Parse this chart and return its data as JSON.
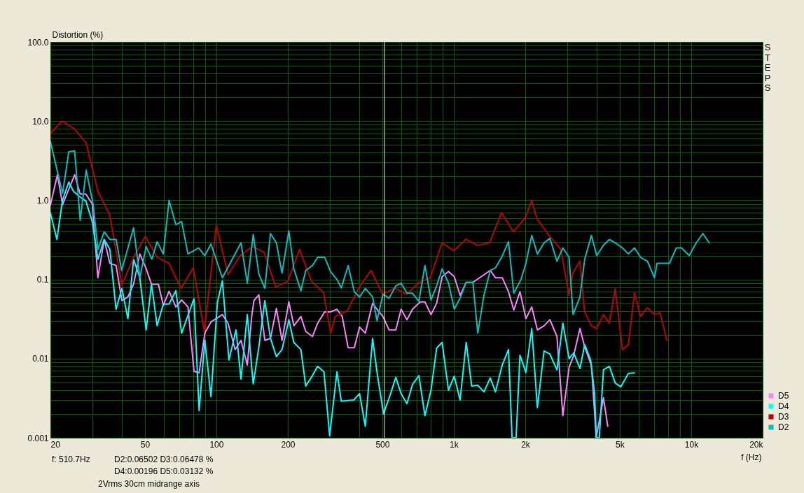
{
  "chart_data": {
    "type": "line",
    "xlabel": "f (Hz)",
    "ylabel": "Distortion (%)",
    "log": "xy",
    "grid": true,
    "legend": "bottom right",
    "xlim": [
      20,
      20000
    ],
    "ylim": [
      0.001,
      100
    ],
    "xticks": [
      20,
      {
        "value": 30,
        "label": null
      },
      {
        "value": 40,
        "label": null
      },
      50,
      {
        "value": 60,
        "label": null
      },
      {
        "value": 70,
        "label": null
      },
      {
        "value": 80,
        "label": null
      },
      {
        "value": 90,
        "label": null
      },
      100,
      200,
      {
        "value": 300,
        "label": null
      },
      {
        "value": 400,
        "label": null
      },
      500,
      {
        "value": 600,
        "label": null
      },
      {
        "value": 700,
        "label": null
      },
      {
        "value": 800,
        "label": null
      },
      {
        "value": 900,
        "label": null
      },
      {
        "value": 1000,
        "label": "1k"
      },
      {
        "value": 2000,
        "label": "2k"
      },
      {
        "value": 3000,
        "label": null
      },
      {
        "value": 4000,
        "label": null
      },
      {
        "value": 5000,
        "label": "5k"
      },
      {
        "value": 6000,
        "label": null
      },
      {
        "value": 7000,
        "label": null
      },
      {
        "value": 8000,
        "label": null
      },
      {
        "value": 9000,
        "label": null
      },
      {
        "value": 10000,
        "label": "10k"
      },
      {
        "value": 20000,
        "label": "20k"
      }
    ],
    "yticks": [
      0.001,
      {
        "value": 0.002,
        "label": null
      },
      {
        "value": 0.003,
        "label": null
      },
      {
        "value": 0.004,
        "label": null
      },
      {
        "value": 0.005,
        "label": null
      },
      {
        "value": 0.006,
        "label": null
      },
      {
        "value": 0.007,
        "label": null
      },
      {
        "value": 0.008,
        "label": null
      },
      {
        "value": 0.009,
        "label": null
      },
      0.01,
      {
        "value": 0.02,
        "label": null
      },
      {
        "value": 0.03,
        "label": null
      },
      {
        "value": 0.04,
        "label": null
      },
      {
        "value": 0.05,
        "label": null
      },
      {
        "value": 0.06,
        "label": null
      },
      {
        "value": 0.07,
        "label": null
      },
      {
        "value": 0.08,
        "label": null
      },
      {
        "value": 0.09,
        "label": null
      },
      0.1,
      {
        "value": 0.2,
        "label": null
      },
      {
        "value": 0.3,
        "label": null
      },
      {
        "value": 0.4,
        "label": null
      },
      {
        "value": 0.5,
        "label": null
      },
      {
        "value": 0.6,
        "label": null
      },
      {
        "value": 0.7,
        "label": null
      },
      {
        "value": 0.8,
        "label": null
      },
      {
        "value": 0.9,
        "label": null
      },
      {
        "value": 1,
        "label": "1.0"
      },
      {
        "value": 2,
        "label": null
      },
      {
        "value": 3,
        "label": null
      },
      {
        "value": 4,
        "label": null
      },
      {
        "value": 5,
        "label": null
      },
      {
        "value": 6,
        "label": null
      },
      {
        "value": 7,
        "label": null
      },
      {
        "value": 8,
        "label": null
      },
      {
        "value": 9,
        "label": null
      },
      {
        "value": 10,
        "label": "10.0"
      },
      {
        "value": 20,
        "label": null
      },
      {
        "value": 30,
        "label": null
      },
      {
        "value": 40,
        "label": null
      },
      {
        "value": 50,
        "label": null
      },
      {
        "value": 60,
        "label": null
      },
      {
        "value": 70,
        "label": null
      },
      {
        "value": 80,
        "label": null
      },
      {
        "value": 90,
        "label": null
      },
      {
        "value": 100,
        "label": "100.0"
      }
    ],
    "ref_lines": [
      {
        "axis": "x",
        "value": 510.7,
        "color": "#f0f0d0"
      }
    ],
    "annotations": [
      "STEPS",
      "f: 510.7Hz",
      "D2:0.06502  D3:0.06478 %",
      "D4:0.00196  D5:0.03132   %",
      "2Vrms 30cm midrange axis"
    ],
    "series": [
      {
        "name": "D5",
        "color": "#ff80ff",
        "x": [
          20,
          21.4,
          22.5,
          25.3,
          26.7,
          28.2,
          30,
          31.7,
          33.7,
          35.6,
          37.8,
          40,
          42.4,
          44.8,
          47.6,
          50.6,
          53.3,
          57,
          59.8,
          63.2,
          67.5,
          71.4,
          75.9,
          80.5,
          84.6,
          89.4,
          94.9,
          106,
          112,
          120,
          127,
          135,
          141,
          144,
          151,
          160,
          169,
          179,
          189,
          202,
          212,
          227,
          238,
          254,
          267,
          286,
          303,
          322,
          339,
          359,
          381,
          401,
          424,
          455,
          475,
          503,
          534,
          570,
          600,
          635,
          670,
          722,
          756,
          802,
          847,
          893,
          950,
          1005,
          1063,
          1128,
          1204,
          1424,
          1498,
          1600,
          1700,
          1790,
          1900,
          2013,
          2130,
          2250,
          2400,
          2540,
          2720,
          2880,
          3060,
          3200,
          3400,
          3560,
          3800,
          3980,
          4270,
          4450
        ],
        "values": [
          0.87,
          2.1,
          0.88,
          2.1,
          1.2,
          1.2,
          0.9,
          0.105,
          0.32,
          0.16,
          0.15,
          0.054,
          0.06,
          0.087,
          0.21,
          0.137,
          0.087,
          0.087,
          0.047,
          0.071,
          0.045,
          0.055,
          0.045,
          0.0069,
          0.0066,
          0.021,
          0.029,
          0.036,
          0.028,
          0.013,
          0.017,
          0.0083,
          0.035,
          0.054,
          0.064,
          0.017,
          0.018,
          0.043,
          0.017,
          0.052,
          0.026,
          0.034,
          0.022,
          0.019,
          0.028,
          0.039,
          0.039,
          0.042,
          0.034,
          0.0137,
          0.0137,
          0.025,
          0.021,
          0.05,
          0.042,
          0.034,
          0.023,
          0.023,
          0.042,
          0.031,
          0.042,
          0.052,
          0.052,
          0.036,
          0.05,
          0.108,
          0.126,
          0.108,
          0.063,
          0.092,
          0.092,
          0.13,
          0.105,
          0.105,
          0.07,
          0.041,
          0.07,
          0.032,
          0.045,
          0.023,
          0.026,
          0.031,
          0.019,
          0.0019,
          0.0078,
          0.011,
          0.024,
          0.014,
          0.0082,
          0.001,
          0.0032,
          0.0014
        ]
      },
      {
        "name": "D4",
        "color": "#00ffff",
        "x": [
          20,
          21.3,
          22.5,
          23.9,
          25,
          26.7,
          28.2,
          30,
          31.7,
          33.7,
          35.6,
          37.8,
          40,
          42.4,
          44.8,
          47.6,
          50.6,
          53.3,
          56.3,
          59.8,
          63.2,
          67.5,
          71.4,
          75.9,
          80.5,
          84.6,
          89.4,
          94.9,
          101,
          106,
          113,
          121,
          127,
          135,
          141,
          143,
          151,
          160,
          169,
          179,
          189,
          202,
          212,
          227,
          238,
          254,
          267,
          284,
          300,
          322,
          336,
          379,
          401,
          424,
          455,
          475,
          506,
          540,
          570,
          600,
          635,
          670,
          713,
          756,
          802,
          847,
          893,
          950,
          1005,
          1063,
          1128,
          1190,
          1262,
          1340,
          1424,
          1498,
          1600,
          1700,
          1760,
          1830,
          1900,
          2013,
          2130,
          2250,
          2400,
          2540,
          2720,
          2880,
          3060,
          3200,
          3400,
          3560,
          3770,
          3920,
          3980,
          4100,
          4270,
          4520,
          4790,
          5050,
          5440,
          5770
        ],
        "values": [
          0.69,
          0.32,
          1.0,
          1.7,
          1.3,
          1.1,
          0.98,
          0.54,
          0.18,
          0.32,
          0.24,
          0.042,
          0.077,
          0.032,
          0.18,
          0.105,
          0.023,
          0.087,
          0.026,
          0.049,
          0.049,
          0.072,
          0.021,
          0.035,
          0.057,
          0.0022,
          0.017,
          0.0033,
          0.051,
          0.096,
          0.0096,
          0.023,
          0.0055,
          0.036,
          0.0075,
          0.0048,
          0.014,
          0.054,
          0.018,
          0.0106,
          0.013,
          0.031,
          0.016,
          0.013,
          0.0045,
          0.0061,
          0.008,
          0.0068,
          0.00106,
          0.0068,
          0.0029,
          0.003,
          0.0036,
          0.0014,
          0.018,
          0.0067,
          0.002,
          0.0035,
          0.0058,
          0.0036,
          0.0027,
          0.0047,
          0.0061,
          0.0019,
          0.004,
          0.0136,
          0.016,
          0.004,
          0.006,
          0.003,
          0.016,
          0.0045,
          0.0046,
          0.0038,
          0.0057,
          0.0038,
          0.0083,
          0.013,
          0.001,
          0.001,
          0.011,
          0.0067,
          0.024,
          0.0024,
          0.0125,
          0.0114,
          0.0072,
          0.028,
          0.01,
          0.0118,
          0.0075,
          0.015,
          0.0096,
          0.0036,
          0.001,
          0.001,
          0.0072,
          0.008,
          0.0049,
          0.0044,
          0.0065,
          0.0066
        ]
      },
      {
        "name": "D3",
        "color": "#c00000",
        "x": [
          20,
          22.4,
          25.2,
          28.3,
          31.7,
          35.6,
          40,
          44.8,
          50.2,
          56.4,
          63.2,
          71,
          80,
          89,
          100,
          112,
          126,
          142,
          159,
          178,
          200,
          224,
          252,
          283,
          303,
          317,
          356,
          400,
          448,
          502,
          564,
          632,
          710,
          796,
          893,
          1000,
          1124,
          1262,
          1416,
          1589,
          1783,
          2000,
          2130,
          2244,
          2518,
          2825,
          3060,
          3170,
          3400,
          3557,
          3800,
          4000,
          4270,
          4520,
          4790,
          5130,
          5440,
          5770,
          6120,
          6540,
          7000,
          7400,
          7900
        ],
        "values": [
          7,
          10,
          8,
          5.3,
          1.3,
          0.65,
          0.085,
          0.19,
          0.35,
          0.19,
          0.16,
          0.077,
          0.14,
          0.022,
          0.48,
          0.115,
          0.2,
          0.26,
          0.22,
          0.08,
          0.095,
          0.24,
          0.094,
          0.068,
          0.021,
          0.034,
          0.04,
          0.08,
          0.13,
          0.065,
          0.078,
          0.065,
          0.09,
          0.105,
          0.29,
          0.23,
          0.32,
          0.27,
          0.29,
          0.7,
          0.4,
          0.6,
          1.0,
          0.58,
          0.36,
          0.24,
          0.063,
          0.12,
          0.17,
          0.039,
          0.026,
          0.024,
          0.036,
          0.028,
          0.077,
          0.013,
          0.015,
          0.068,
          0.034,
          0.044,
          0.036,
          0.038,
          0.017
        ]
      },
      {
        "name": "D2",
        "color": "#00c0c0",
        "x": [
          20,
          22.5,
          23.9,
          25.3,
          26.7,
          28.3,
          30.3,
          31.7,
          33.7,
          35.6,
          37.8,
          39.9,
          44.8,
          47.6,
          50.6,
          53.5,
          56.3,
          59.8,
          63.2,
          67.5,
          71.4,
          75.9,
          84.2,
          89.4,
          94.9,
          106,
          127,
          135,
          143,
          151,
          160,
          169,
          179,
          189,
          202,
          212,
          227,
          238,
          254,
          267,
          286,
          303,
          322,
          336,
          359,
          381,
          401,
          424,
          455,
          475,
          503,
          534,
          570,
          600,
          635,
          670,
          713,
          756,
          802,
          847,
          893,
          950,
          1005,
          1063,
          1128,
          1204,
          1262,
          1340,
          1424,
          1498,
          1590,
          1700,
          1790,
          1920,
          2013,
          2130,
          2250,
          2400,
          2540,
          2720,
          2880,
          3060,
          3180,
          3400,
          3560,
          3800,
          4000,
          4270,
          4520,
          4790,
          5130,
          5440,
          5770,
          6120,
          6540,
          7000,
          7180,
          7580,
          8100,
          8660,
          9100,
          9810,
          10500,
          11200,
          11900
        ],
        "values": [
          5.5,
          1.22,
          4.1,
          4.2,
          0.56,
          2.4,
          0.87,
          0.24,
          0.4,
          0.32,
          0.32,
          0.13,
          0.45,
          0.105,
          0.26,
          0.18,
          0.3,
          0.21,
          1.0,
          0.49,
          0.54,
          0.21,
          0.25,
          0.2,
          0.28,
          0.105,
          0.29,
          0.09,
          0.37,
          0.117,
          0.077,
          0.38,
          0.29,
          0.12,
          0.41,
          0.136,
          0.072,
          0.13,
          0.15,
          0.19,
          0.19,
          0.125,
          0.1,
          0.078,
          0.15,
          0.07,
          0.06,
          0.077,
          0.06,
          0.03,
          0.065,
          0.058,
          0.083,
          0.09,
          0.067,
          0.067,
          0.053,
          0.15,
          0.055,
          0.083,
          0.136,
          0.09,
          0.042,
          0.058,
          0.092,
          0.092,
          0.021,
          0.063,
          0.13,
          0.14,
          0.19,
          0.3,
          0.067,
          0.1,
          0.16,
          0.36,
          0.21,
          0.29,
          0.33,
          0.17,
          0.25,
          0.19,
          0.036,
          0.06,
          0.18,
          0.36,
          0.2,
          0.27,
          0.32,
          0.29,
          0.25,
          0.21,
          0.25,
          0.19,
          0.17,
          0.105,
          0.16,
          0.16,
          0.16,
          0.25,
          0.25,
          0.2,
          0.29,
          0.38,
          0.29
        ]
      }
    ]
  }
}
